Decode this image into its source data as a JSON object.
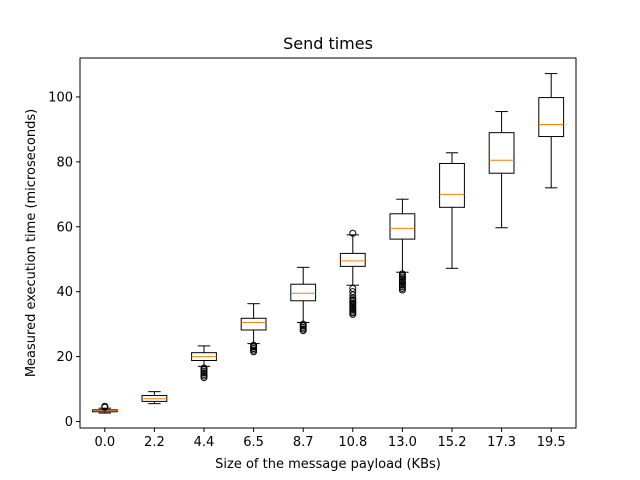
{
  "chart_data": {
    "type": "box",
    "title": "Send times",
    "xlabel": "Size of the message payload (KBs)",
    "ylabel": "Measured execution time (microseconds)",
    "ylim": [
      -2,
      112
    ],
    "yticks": [
      0,
      20,
      40,
      60,
      80,
      100
    ],
    "grid": false,
    "median_color": "#ff7f0e",
    "box_color": "#000000",
    "categories": [
      "0.0",
      "2.2",
      "4.4",
      "6.5",
      "8.7",
      "10.8",
      "13.0",
      "15.2",
      "17.3",
      "19.5"
    ],
    "boxes": [
      {
        "category": "0.0",
        "whisker_low": 2.6,
        "q1": 3.0,
        "median": 3.3,
        "q3": 3.6,
        "whisker_high": 4.1,
        "outliers_low": [],
        "outliers_high": [
          4.4,
          4.7
        ]
      },
      {
        "category": "2.2",
        "whisker_low": 5.5,
        "q1": 6.2,
        "median": 7.0,
        "q3": 8.0,
        "whisker_high": 9.2,
        "outliers_low": [],
        "outliers_high": []
      },
      {
        "category": "4.4",
        "whisker_low": 17.0,
        "q1": 18.8,
        "median": 20.0,
        "q3": 21.2,
        "whisker_high": 23.3,
        "outliers_low": [
          16.5,
          16.0,
          15.5,
          15.0,
          14.5,
          14.0,
          13.5
        ],
        "outliers_high": []
      },
      {
        "category": "6.5",
        "whisker_low": 24.0,
        "q1": 28.2,
        "median": 30.5,
        "q3": 31.8,
        "whisker_high": 36.3,
        "outliers_low": [
          23.5,
          23.0,
          22.5,
          22.0,
          21.5
        ],
        "outliers_high": []
      },
      {
        "category": "8.7",
        "whisker_low": 30.5,
        "q1": 37.2,
        "median": 39.5,
        "q3": 42.3,
        "whisker_high": 47.5,
        "outliers_low": [
          30.0,
          29.5,
          29.0,
          28.5,
          28.0
        ],
        "outliers_high": []
      },
      {
        "category": "10.8",
        "whisker_low": 42.0,
        "q1": 47.8,
        "median": 49.5,
        "q3": 51.8,
        "whisker_high": 57.5,
        "outliers_low": [
          41.0,
          40.0,
          39.0,
          38.0,
          37.5,
          37.0,
          36.5,
          36.0,
          35.5,
          35.0,
          34.5,
          34.0,
          33.5,
          33.0
        ],
        "outliers_high": [
          58.0
        ]
      },
      {
        "category": "13.0",
        "whisker_low": 46.0,
        "q1": 56.2,
        "median": 59.5,
        "q3": 64.0,
        "whisker_high": 68.5,
        "outliers_low": [
          45.5,
          45.0,
          44.5,
          44.0,
          43.5,
          43.0,
          42.5,
          42.0,
          41.5,
          41.0,
          40.5
        ],
        "outliers_high": []
      },
      {
        "category": "15.2",
        "whisker_low": 47.2,
        "q1": 66.0,
        "median": 70.0,
        "q3": 79.5,
        "whisker_high": 82.8,
        "outliers_low": [],
        "outliers_high": []
      },
      {
        "category": "17.3",
        "whisker_low": 59.7,
        "q1": 76.5,
        "median": 80.5,
        "q3": 89.0,
        "whisker_high": 95.5,
        "outliers_low": [],
        "outliers_high": []
      },
      {
        "category": "19.5",
        "whisker_low": 72.0,
        "q1": 87.8,
        "median": 91.5,
        "q3": 99.8,
        "whisker_high": 107.2,
        "outliers_low": [],
        "outliers_high": []
      }
    ]
  }
}
